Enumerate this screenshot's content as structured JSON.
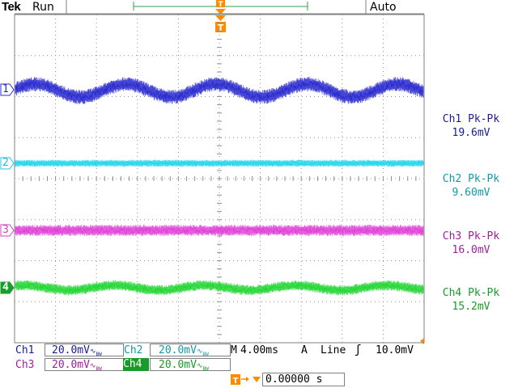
{
  "header": {
    "brand": "Tek",
    "state": "Run",
    "trigger_mode": "Auto"
  },
  "colors": {
    "ch1": "#2b2bcf",
    "ch2": "#22d6ee",
    "ch3": "#e040d8",
    "ch4": "#22d633",
    "trigger": "#ff8a00",
    "grid": "#808080"
  },
  "channels": [
    {
      "id": "1",
      "marker": "1"
    },
    {
      "id": "2",
      "marker": "2"
    },
    {
      "id": "3",
      "marker": "3"
    },
    {
      "id": "4",
      "marker": "4"
    }
  ],
  "measurements": [
    {
      "label": "Ch1 Pk-Pk",
      "value": "19.6mV"
    },
    {
      "label": "Ch2 Pk-Pk",
      "value": "9.60mV"
    },
    {
      "label": "Ch3 Pk-Pk",
      "value": "16.0mV"
    },
    {
      "label": "Ch4 Pk-Pk",
      "value": "15.2mV"
    }
  ],
  "scales": {
    "ch1": {
      "name": "Ch1",
      "value": "20.0mV"
    },
    "ch2": {
      "name": "Ch2",
      "value": "20.0mV"
    },
    "ch3": {
      "name": "Ch3",
      "value": "20.0mV"
    },
    "ch4": {
      "name": "Ch4",
      "value": "20.0mV"
    }
  },
  "timebase": {
    "prefix": "M",
    "value": "4.00ms"
  },
  "trigger": {
    "source_prefix": "A",
    "source": "Line",
    "level": "10.0mV",
    "position": "0.00000 s"
  },
  "trigger_icon_label": "T"
}
